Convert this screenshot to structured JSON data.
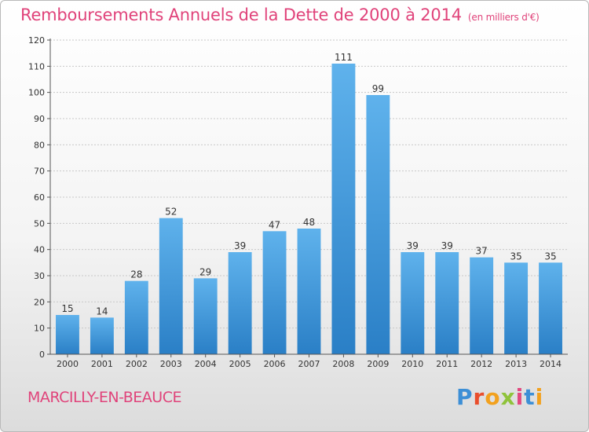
{
  "title": "Remboursements Annuels de la Dette de 2000 à 2014",
  "title_unit": "(en milliers d'€)",
  "commune": "MARCILLY-EN-BEAUCE",
  "logo": {
    "letters": [
      "P",
      "r",
      "o",
      "x",
      "i",
      "t",
      "i"
    ]
  },
  "colors": {
    "bar_top": "#5fb2ec",
    "bar_bottom": "#2a7fc6",
    "title": "#e0437a",
    "grid": "#c8c8c8"
  },
  "chart_data": {
    "type": "bar",
    "categories": [
      "2000",
      "2001",
      "2002",
      "2003",
      "2004",
      "2005",
      "2006",
      "2007",
      "2008",
      "2009",
      "2010",
      "2011",
      "2012",
      "2013",
      "2014"
    ],
    "values": [
      15,
      14,
      28,
      52,
      29,
      39,
      47,
      48,
      111,
      99,
      39,
      39,
      37,
      35,
      35
    ],
    "ylim": [
      0,
      120
    ],
    "yticks": [
      0,
      10,
      20,
      30,
      40,
      50,
      60,
      70,
      80,
      90,
      100,
      110,
      120
    ],
    "grid": true,
    "data_labels": true
  }
}
